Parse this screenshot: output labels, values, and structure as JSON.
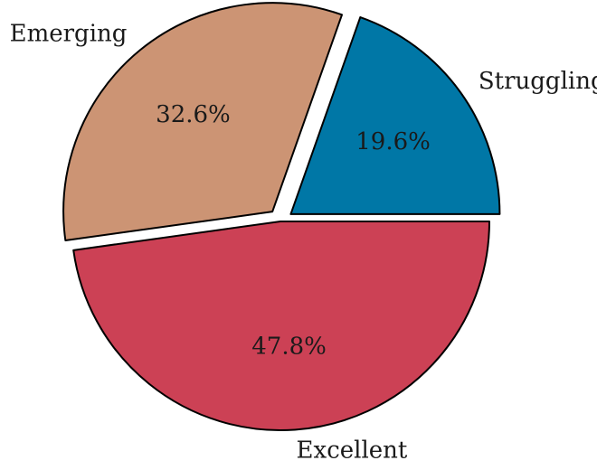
{
  "chart_data": {
    "type": "pie",
    "categories": [
      "Struggling",
      "Emerging",
      "Excellent"
    ],
    "values": [
      19.6,
      32.6,
      47.8
    ],
    "value_labels": [
      "19.6%",
      "32.6%",
      "47.8%"
    ],
    "colors": [
      "#0077a6",
      "#cc9474",
      "#cc4155"
    ],
    "exploded": [
      true,
      true,
      false
    ],
    "start_angle_deg": 0,
    "direction": "counterclockwise",
    "title": "",
    "legend": "none"
  }
}
